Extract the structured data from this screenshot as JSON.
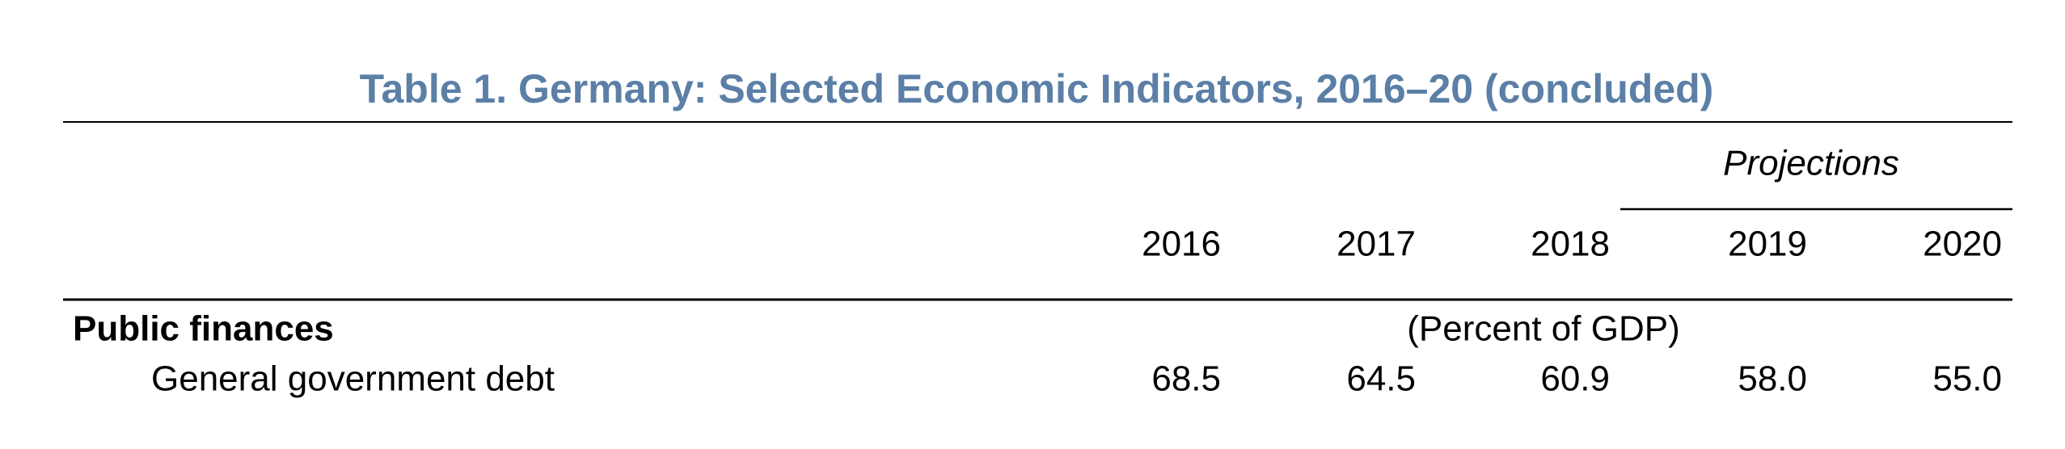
{
  "header": {
    "title": "Table 1. Germany: Selected Economic Indicators, 2016–20 (concluded)"
  },
  "table": {
    "projections_label": "Projections",
    "columns": [
      "2016",
      "2017",
      "2018",
      "2019",
      "2020"
    ],
    "section": "Public finances",
    "unit_note": "(Percent of GDP)",
    "rows": [
      [
        "General government debt",
        "68.5",
        "64.5",
        "60.9",
        "58.0",
        "55.0"
      ]
    ]
  }
}
